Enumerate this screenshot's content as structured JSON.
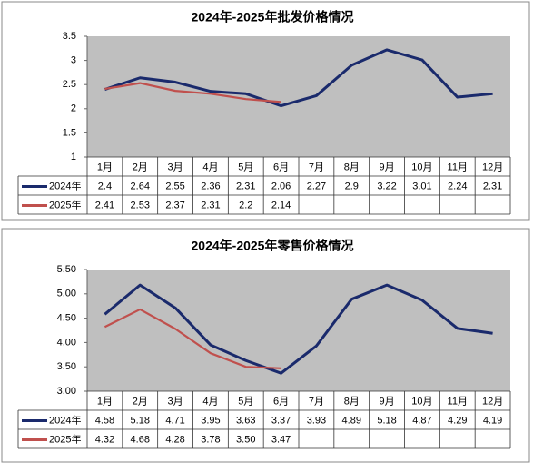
{
  "chart_data": [
    {
      "type": "line",
      "title": "2024年-2025年批发价格情况",
      "categories": [
        "1月",
        "2月",
        "3月",
        "4月",
        "5月",
        "6月",
        "7月",
        "8月",
        "9月",
        "10月",
        "11月",
        "12月"
      ],
      "series": [
        {
          "name": "2024年",
          "color": "#1a2a6c",
          "values": [
            2.4,
            2.64,
            2.55,
            2.36,
            2.31,
            2.06,
            2.27,
            2.9,
            3.22,
            3.01,
            2.24,
            2.31
          ]
        },
        {
          "name": "2025年",
          "color": "#c0504d",
          "values": [
            2.41,
            2.53,
            2.37,
            2.31,
            2.2,
            2.14,
            null,
            null,
            null,
            null,
            null,
            null
          ]
        }
      ],
      "ylim": [
        1,
        3.5
      ],
      "yticks": [
        1,
        1.5,
        2,
        2.5,
        3,
        3.5
      ],
      "grid": false
    },
    {
      "type": "line",
      "title": "2024年-2025年零售价格情况",
      "categories": [
        "1月",
        "2月",
        "3月",
        "4月",
        "5月",
        "6月",
        "7月",
        "8月",
        "9月",
        "10月",
        "11月",
        "12月"
      ],
      "series": [
        {
          "name": "2024年",
          "color": "#1a2a6c",
          "values": [
            4.58,
            5.18,
            4.71,
            3.95,
            3.63,
            3.37,
            3.93,
            4.89,
            5.18,
            4.87,
            4.29,
            4.19
          ],
          "value_labels": [
            "4.58",
            "5.18",
            "4.71",
            "3.95",
            "3.63",
            "3.37",
            "3.93",
            "4.89",
            "5.18",
            "4.87",
            "4.29",
            "4.19"
          ]
        },
        {
          "name": "2025年",
          "color": "#c0504d",
          "values": [
            4.32,
            4.68,
            4.28,
            3.78,
            3.5,
            3.47,
            null,
            null,
            null,
            null,
            null,
            null
          ],
          "value_labels": [
            "4.32",
            "4.68",
            "4.28",
            "3.78",
            "3.50",
            "3.47",
            null,
            null,
            null,
            null,
            null,
            null
          ]
        }
      ],
      "ylim": [
        3,
        5.5
      ],
      "yticks": [
        {
          "value": 3,
          "label": "3.00"
        },
        {
          "value": 3.5,
          "label": "3.50"
        },
        {
          "value": 4,
          "label": "4.00"
        },
        {
          "value": 4.5,
          "label": "4.50"
        },
        {
          "value": 5,
          "label": "5.00"
        },
        {
          "value": 5.5,
          "label": "5.50"
        }
      ],
      "grid": false
    }
  ]
}
